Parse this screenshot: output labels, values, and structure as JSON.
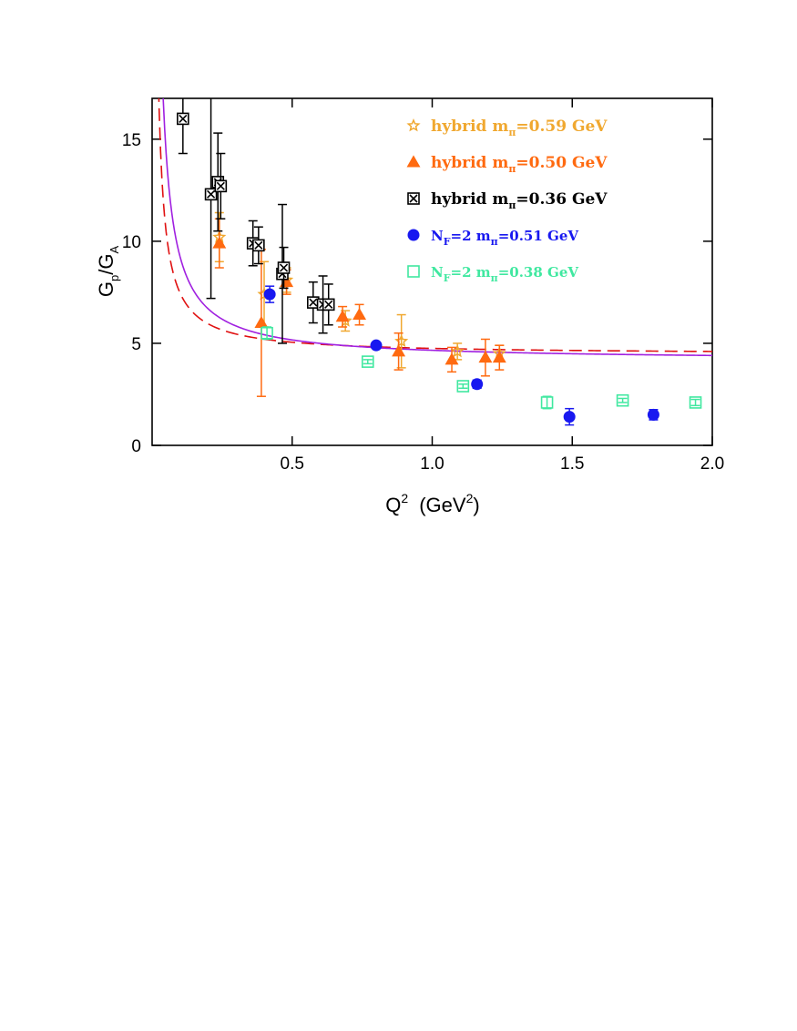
{
  "chart_data": {
    "type": "scatter",
    "xlabel": "Q",
    "xlabel_sup": "2",
    "xlabel_unit_open": "(GeV",
    "xlabel_unit_sup": "2",
    "xlabel_unit_close": ")",
    "ylabel_base1": "G",
    "ylabel_sub1": "p",
    "ylabel_slash": "/G",
    "ylabel_sub2": "A",
    "xlim": [
      0.0,
      2.0
    ],
    "ylim": [
      0,
      17
    ],
    "x_ticks": [
      {
        "value": 0.5,
        "label": "0.5"
      },
      {
        "value": 1.0,
        "label": "1.0"
      },
      {
        "value": 1.5,
        "label": "1.5"
      },
      {
        "value": 2.0,
        "label": "2.0"
      }
    ],
    "y_ticks": [
      {
        "value": 0,
        "label": "0"
      },
      {
        "value": 5,
        "label": "5"
      },
      {
        "value": 10,
        "label": "10"
      },
      {
        "value": 15,
        "label": "15"
      }
    ],
    "legend_position": "top-right",
    "series": [
      {
        "legend_prefix": "hybrid  m",
        "legend_sub": "π",
        "legend_suffix": "=0.59  GeV",
        "color": "#F0A830",
        "marker": "star",
        "points": [
          {
            "x": 0.24,
            "y": 10.2,
            "err": 1.2
          },
          {
            "x": 0.4,
            "y": 7.4,
            "err": 1.6
          },
          {
            "x": 0.48,
            "y": 8.1,
            "err": 0.6
          },
          {
            "x": 0.69,
            "y": 6.1,
            "err": 0.5
          },
          {
            "x": 0.89,
            "y": 5.1,
            "err": 1.3
          },
          {
            "x": 1.09,
            "y": 4.6,
            "err": 0.4
          },
          {
            "x": 1.24,
            "y": 4.5,
            "err": 0.4
          }
        ]
      },
      {
        "legend_prefix": "hybrid  m",
        "legend_sub": "π",
        "legend_suffix": "=0.50  GeV",
        "color": "#FF6A10",
        "marker": "triangle",
        "points": [
          {
            "x": 0.24,
            "y": 9.9,
            "err": 1.2
          },
          {
            "x": 0.39,
            "y": 6.0,
            "err": 3.6
          },
          {
            "x": 0.48,
            "y": 8.0,
            "err": 0.6
          },
          {
            "x": 0.68,
            "y": 6.3,
            "err": 0.5
          },
          {
            "x": 0.74,
            "y": 6.4,
            "err": 0.5
          },
          {
            "x": 0.88,
            "y": 4.6,
            "err": 0.9
          },
          {
            "x": 1.07,
            "y": 4.2,
            "err": 0.6
          },
          {
            "x": 1.19,
            "y": 4.3,
            "err": 0.9
          },
          {
            "x": 1.24,
            "y": 4.3,
            "err": 0.6
          }
        ]
      },
      {
        "legend_prefix": "hybrid  m",
        "legend_sub": "π",
        "legend_suffix": "=0.36  GeV",
        "color": "#000000",
        "marker": "boxx",
        "points": [
          {
            "x": 0.11,
            "y": 16.0,
            "err": 1.7
          },
          {
            "x": 0.21,
            "y": 12.3,
            "err": 5.1
          },
          {
            "x": 0.235,
            "y": 12.9,
            "err": 2.4
          },
          {
            "x": 0.245,
            "y": 12.7,
            "err": 1.6
          },
          {
            "x": 0.36,
            "y": 9.9,
            "err": 1.1
          },
          {
            "x": 0.38,
            "y": 9.8,
            "err": 0.9
          },
          {
            "x": 0.465,
            "y": 8.4,
            "err": 3.4
          },
          {
            "x": 0.47,
            "y": 8.7,
            "err": 1.0
          },
          {
            "x": 0.575,
            "y": 7.0,
            "err": 1.0
          },
          {
            "x": 0.61,
            "y": 6.9,
            "err": 1.4
          },
          {
            "x": 0.63,
            "y": 6.9,
            "err": 1.0
          }
        ]
      },
      {
        "legend_prefix": "N",
        "legend_prefix_sub": "F",
        "legend_mid": "=2  m",
        "legend_sub": "π",
        "legend_suffix": "=0.51  GeV",
        "color": "#1818F0",
        "marker": "circle",
        "points": [
          {
            "x": 0.42,
            "y": 7.4,
            "err": 0.4
          },
          {
            "x": 0.8,
            "y": 4.9,
            "err": 0.15
          },
          {
            "x": 1.16,
            "y": 3.0,
            "err": 0.2
          },
          {
            "x": 1.49,
            "y": 1.4,
            "err": 0.4
          },
          {
            "x": 1.79,
            "y": 1.5,
            "err": 0.25
          }
        ]
      },
      {
        "legend_prefix": "N",
        "legend_prefix_sub": "F",
        "legend_mid": "=2  m",
        "legend_sub": "π",
        "legend_suffix": "=0.38  GeV",
        "color": "#40E8A0",
        "marker": "openbox",
        "points": [
          {
            "x": 0.41,
            "y": 5.5,
            "err": 0.3
          },
          {
            "x": 0.77,
            "y": 4.1,
            "err": 0.1
          },
          {
            "x": 1.11,
            "y": 2.9,
            "err": 0.1
          },
          {
            "x": 1.41,
            "y": 2.1,
            "err": 0.3
          },
          {
            "x": 1.68,
            "y": 2.2,
            "err": 0.1
          },
          {
            "x": 1.94,
            "y": 2.1,
            "err": 0.15
          }
        ]
      }
    ],
    "curves": [
      {
        "style": "dashed",
        "color": "#E01010",
        "A": 4.45,
        "m2": 0.0676
      },
      {
        "style": "solid",
        "color": "#A020E0",
        "A": 4.15,
        "m2": 0.1225
      }
    ]
  }
}
